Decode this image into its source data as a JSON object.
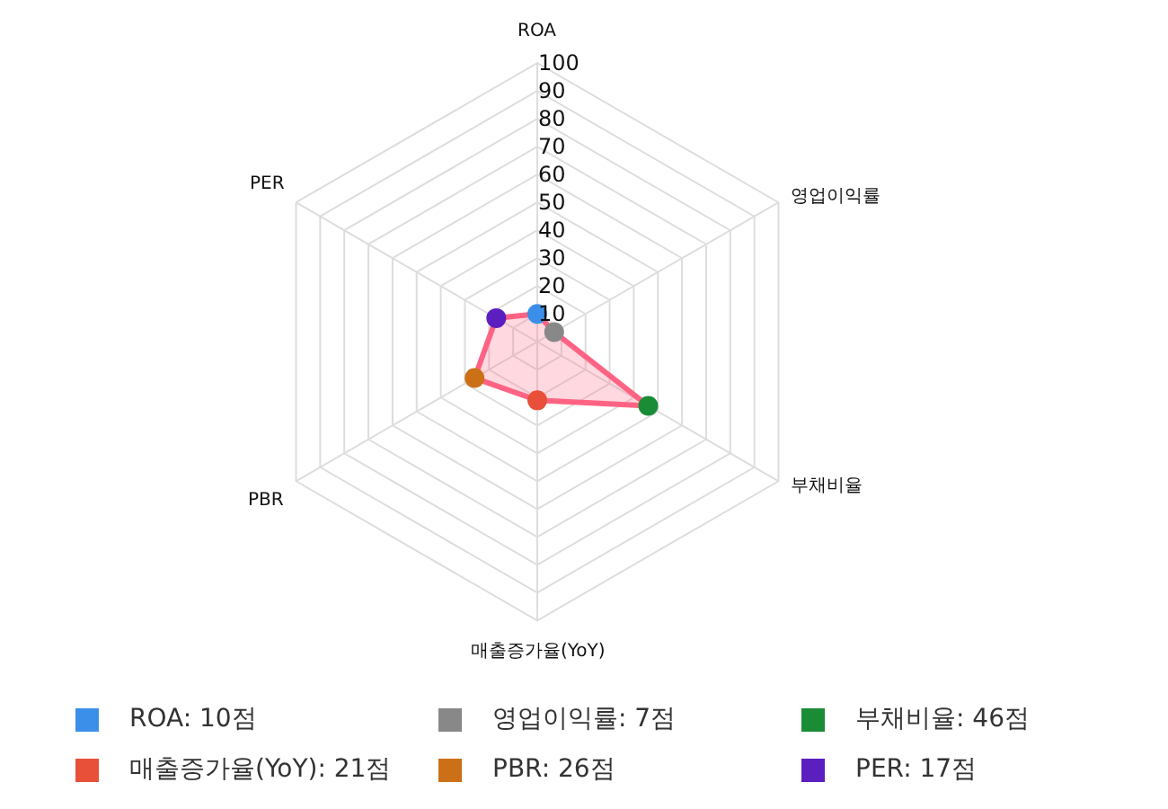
{
  "chart_data": {
    "type": "radar",
    "categories": [
      "ROA",
      "영업이익률",
      "부채비율",
      "매출증가율(YoY)",
      "PBR",
      "PER"
    ],
    "ylim": [
      0,
      100
    ],
    "yticks": [
      10,
      20,
      30,
      40,
      50,
      60,
      70,
      80,
      90,
      100
    ],
    "grid": true,
    "marker": "circle",
    "line_style": "solid",
    "series": [
      {
        "color": "#ff6384",
        "colors": [
          "#3b8fe8",
          "#888888",
          "#1a8c36",
          "#e8503a",
          "#cc7018",
          "#5b1fc0"
        ],
        "values": [
          10,
          7,
          46,
          21,
          26,
          17
        ]
      }
    ],
    "annotations": [
      "ROA: 10점",
      "영업이익률: 7점",
      "부채비율: 46점",
      "매출증가율(YoY): 21점",
      "PBR: 26점",
      "PER: 17점"
    ]
  }
}
